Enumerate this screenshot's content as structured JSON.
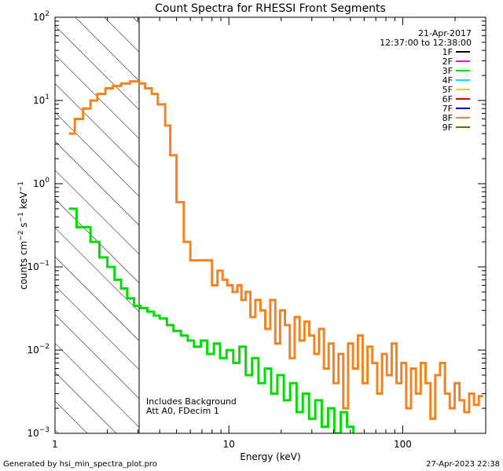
{
  "chart_data": {
    "type": "line",
    "title": "Count Spectra for RHESSI Front Segments",
    "xlabel": "Energy (keV)",
    "ylabel": {
      "base": "counts cm",
      "exp1": "−2",
      "mid1": " s",
      "exp2": "−1",
      "mid2": " keV",
      "exp3": "−1"
    },
    "xscale": "log",
    "yscale": "log",
    "xlim": [
      1,
      300
    ],
    "ylim": [
      0.001,
      100
    ],
    "x_ticks": [
      {
        "value": 1,
        "label": "1"
      },
      {
        "value": 10,
        "label": "10"
      },
      {
        "value": 100,
        "label": "100"
      }
    ],
    "y_ticks": [
      {
        "value": 100,
        "base": "10",
        "exp": "2"
      },
      {
        "value": 10,
        "base": "10",
        "exp": "1"
      },
      {
        "value": 1,
        "base": "10",
        "exp": "0"
      },
      {
        "value": 0.1,
        "base": "10",
        "exp": "−1"
      },
      {
        "value": 0.01,
        "base": "10",
        "exp": "−2"
      },
      {
        "value": 0.001,
        "base": "10",
        "exp": "−3"
      }
    ],
    "hatch_region": {
      "x_from": 1,
      "x_to": 3
    },
    "annotations": {
      "date": "21-Apr-2017",
      "time_range": "12:37:00 to 12:38:00",
      "notes": [
        "Includes Background",
        "Att A0, FDecim 1"
      ]
    },
    "legend": {
      "placement": "top-right",
      "entries": [
        {
          "name": "1F",
          "color": "#000000"
        },
        {
          "name": "2F",
          "color": "#ff00ff"
        },
        {
          "name": "3F",
          "color": "#00dd00"
        },
        {
          "name": "4F",
          "color": "#00e5ff"
        },
        {
          "name": "5F",
          "color": "#f0d000"
        },
        {
          "name": "6F",
          "color": "#dd0000"
        },
        {
          "name": "7F",
          "color": "#0000cc"
        },
        {
          "name": "8F",
          "color": "#f58220"
        },
        {
          "name": "9F",
          "color": "#6b6b00"
        }
      ]
    },
    "series": [
      {
        "name": "8F",
        "color": "#f58220",
        "points": [
          [
            1.2,
            4
          ],
          [
            1.3,
            4
          ],
          [
            1.3,
            6
          ],
          [
            1.45,
            6
          ],
          [
            1.45,
            8
          ],
          [
            1.6,
            8
          ],
          [
            1.6,
            10
          ],
          [
            1.75,
            10
          ],
          [
            1.75,
            12
          ],
          [
            1.95,
            12
          ],
          [
            1.95,
            14
          ],
          [
            2.15,
            14
          ],
          [
            2.15,
            15
          ],
          [
            2.4,
            15
          ],
          [
            2.4,
            16
          ],
          [
            2.7,
            16
          ],
          [
            2.7,
            17
          ],
          [
            3.05,
            17
          ],
          [
            3.05,
            16
          ],
          [
            3.3,
            16
          ],
          [
            3.3,
            14
          ],
          [
            3.6,
            14
          ],
          [
            3.6,
            12
          ],
          [
            3.9,
            12
          ],
          [
            3.9,
            9
          ],
          [
            4.3,
            9
          ],
          [
            4.3,
            5
          ],
          [
            4.6,
            5
          ],
          [
            4.6,
            2.2
          ],
          [
            5.0,
            2.2
          ],
          [
            5.0,
            0.6
          ],
          [
            5.5,
            0.6
          ],
          [
            5.5,
            0.2
          ],
          [
            6.0,
            0.2
          ],
          [
            6.0,
            0.12
          ],
          [
            7.0,
            0.12
          ],
          [
            7.0,
            0.12
          ],
          [
            8.0,
            0.12
          ],
          [
            8.0,
            0.06
          ],
          [
            8.6,
            0.06
          ],
          [
            8.6,
            0.09
          ],
          [
            9.2,
            0.09
          ],
          [
            9.2,
            0.07
          ],
          [
            9.8,
            0.07
          ],
          [
            9.8,
            0.06
          ],
          [
            10.5,
            0.06
          ],
          [
            10.5,
            0.05
          ],
          [
            11.2,
            0.05
          ],
          [
            11.2,
            0.06
          ],
          [
            11.8,
            0.06
          ],
          [
            11.8,
            0.04
          ],
          [
            12.5,
            0.04
          ],
          [
            12.5,
            0.05
          ],
          [
            13.3,
            0.05
          ],
          [
            13.3,
            0.025
          ],
          [
            14.2,
            0.025
          ],
          [
            14.2,
            0.04
          ],
          [
            15.2,
            0.04
          ],
          [
            15.2,
            0.03
          ],
          [
            16.2,
            0.03
          ],
          [
            16.2,
            0.018
          ],
          [
            17.3,
            0.018
          ],
          [
            17.3,
            0.04
          ],
          [
            18.5,
            0.04
          ],
          [
            18.5,
            0.012
          ],
          [
            19.7,
            0.012
          ],
          [
            19.7,
            0.03
          ],
          [
            21.0,
            0.03
          ],
          [
            21.0,
            0.02
          ],
          [
            22.4,
            0.02
          ],
          [
            22.4,
            0.008
          ],
          [
            23.9,
            0.008
          ],
          [
            23.9,
            0.025
          ],
          [
            25.5,
            0.025
          ],
          [
            25.5,
            0.013
          ],
          [
            27.2,
            0.013
          ],
          [
            27.2,
            0.022
          ],
          [
            29.0,
            0.022
          ],
          [
            29.0,
            0.015
          ],
          [
            31.0,
            0.015
          ],
          [
            31.0,
            0.009
          ],
          [
            33.0,
            0.009
          ],
          [
            33.0,
            0.018
          ],
          [
            35.2,
            0.018
          ],
          [
            35.2,
            0.006
          ],
          [
            37.5,
            0.006
          ],
          [
            37.5,
            0.012
          ],
          [
            40.0,
            0.012
          ],
          [
            40.0,
            0.004
          ],
          [
            42.7,
            0.004
          ],
          [
            42.7,
            0.009
          ],
          [
            45.5,
            0.009
          ],
          [
            45.5,
            0.002
          ],
          [
            48.5,
            0.002
          ],
          [
            48.5,
            0.012
          ],
          [
            51.7,
            0.012
          ],
          [
            51.7,
            0.006
          ],
          [
            55.2,
            0.006
          ],
          [
            55.2,
            0.015
          ],
          [
            58.8,
            0.015
          ],
          [
            58.8,
            0.004
          ],
          [
            62.7,
            0.004
          ],
          [
            62.7,
            0.011
          ],
          [
            66.8,
            0.011
          ],
          [
            66.8,
            0.007
          ],
          [
            71.3,
            0.007
          ],
          [
            71.3,
            0.003
          ],
          [
            76.0,
            0.003
          ],
          [
            76.0,
            0.009
          ],
          [
            81.0,
            0.009
          ],
          [
            81.0,
            0.005
          ],
          [
            86.4,
            0.005
          ],
          [
            86.4,
            0.012
          ],
          [
            92.1,
            0.012
          ],
          [
            92.1,
            0.004
          ],
          [
            98.2,
            0.004
          ],
          [
            98.2,
            0.007
          ],
          [
            104.7,
            0.007
          ],
          [
            104.7,
            0.002
          ],
          [
            111.6,
            0.002
          ],
          [
            111.6,
            0.006
          ],
          [
            119.0,
            0.006
          ],
          [
            119.0,
            0.003
          ],
          [
            126.9,
            0.003
          ],
          [
            126.9,
            0.007
          ],
          [
            135.3,
            0.007
          ],
          [
            135.3,
            0.004
          ],
          [
            144.3,
            0.004
          ],
          [
            144.3,
            0.0015
          ],
          [
            153.8,
            0.0015
          ],
          [
            153.8,
            0.005
          ],
          [
            164.0,
            0.005
          ],
          [
            164.0,
            0.007
          ],
          [
            174.9,
            0.007
          ],
          [
            174.9,
            0.003
          ],
          [
            186.4,
            0.003
          ],
          [
            186.4,
            0.002
          ],
          [
            198.8,
            0.002
          ],
          [
            198.8,
            0.004
          ],
          [
            212.0,
            0.004
          ],
          [
            212.0,
            0.0025
          ],
          [
            226.0,
            0.0025
          ],
          [
            226.0,
            0.0018
          ],
          [
            241.0,
            0.0018
          ],
          [
            241.0,
            0.003
          ],
          [
            257.0,
            0.003
          ],
          [
            257.0,
            0.0022
          ],
          [
            274.0,
            0.0022
          ],
          [
            274.0,
            0.0028
          ],
          [
            290.0,
            0.0028
          ]
        ]
      },
      {
        "name": "3F",
        "color": "#00dd00",
        "points": [
          [
            1.2,
            0.5
          ],
          [
            1.33,
            0.5
          ],
          [
            1.33,
            0.3
          ],
          [
            1.6,
            0.3
          ],
          [
            1.6,
            0.2
          ],
          [
            1.8,
            0.2
          ],
          [
            1.8,
            0.13
          ],
          [
            2.0,
            0.13
          ],
          [
            2.0,
            0.1
          ],
          [
            2.2,
            0.1
          ],
          [
            2.2,
            0.07
          ],
          [
            2.4,
            0.07
          ],
          [
            2.4,
            0.055
          ],
          [
            2.6,
            0.055
          ],
          [
            2.6,
            0.042
          ],
          [
            2.85,
            0.042
          ],
          [
            2.85,
            0.034
          ],
          [
            3.1,
            0.034
          ],
          [
            3.1,
            0.032
          ],
          [
            3.4,
            0.032
          ],
          [
            3.4,
            0.029
          ],
          [
            3.7,
            0.029
          ],
          [
            3.7,
            0.026
          ],
          [
            4.0,
            0.026
          ],
          [
            4.0,
            0.024
          ],
          [
            4.4,
            0.024
          ],
          [
            4.4,
            0.02
          ],
          [
            4.8,
            0.02
          ],
          [
            4.8,
            0.017
          ],
          [
            5.3,
            0.017
          ],
          [
            5.3,
            0.015
          ],
          [
            5.8,
            0.015
          ],
          [
            5.8,
            0.013
          ],
          [
            6.3,
            0.013
          ],
          [
            6.3,
            0.011
          ],
          [
            6.9,
            0.011
          ],
          [
            6.9,
            0.013
          ],
          [
            7.5,
            0.013
          ],
          [
            7.5,
            0.009
          ],
          [
            8.2,
            0.009
          ],
          [
            8.2,
            0.012
          ],
          [
            8.9,
            0.012
          ],
          [
            8.9,
            0.008
          ],
          [
            9.7,
            0.008
          ],
          [
            9.7,
            0.01
          ],
          [
            10.6,
            0.01
          ],
          [
            10.6,
            0.007
          ],
          [
            11.5,
            0.007
          ],
          [
            11.5,
            0.011
          ],
          [
            12.5,
            0.011
          ],
          [
            12.5,
            0.005
          ],
          [
            13.6,
            0.005
          ],
          [
            13.6,
            0.008
          ],
          [
            14.8,
            0.008
          ],
          [
            14.8,
            0.004
          ],
          [
            16.1,
            0.004
          ],
          [
            16.1,
            0.006
          ],
          [
            17.5,
            0.006
          ],
          [
            17.5,
            0.003
          ],
          [
            19.0,
            0.003
          ],
          [
            19.0,
            0.005
          ],
          [
            20.7,
            0.005
          ],
          [
            20.7,
            0.0025
          ],
          [
            22.5,
            0.0025
          ],
          [
            22.5,
            0.004
          ],
          [
            24.5,
            0.004
          ],
          [
            24.5,
            0.0018
          ],
          [
            26.6,
            0.0018
          ],
          [
            26.6,
            0.003
          ],
          [
            28.9,
            0.003
          ],
          [
            28.9,
            0.0015
          ],
          [
            31.4,
            0.0015
          ],
          [
            31.4,
            0.0025
          ],
          [
            34.2,
            0.0025
          ],
          [
            34.2,
            0.0012
          ],
          [
            37.2,
            0.0012
          ],
          [
            37.2,
            0.002
          ],
          [
            40.4,
            0.002
          ],
          [
            40.4,
            0.001
          ],
          [
            44.0,
            0.001
          ],
          [
            44.0,
            0.0018
          ],
          [
            47.8,
            0.0018
          ],
          [
            47.8,
            0.0012
          ],
          [
            52.0,
            0.0012
          ],
          [
            52.0,
            0.001
          ]
        ]
      }
    ]
  },
  "footer": {
    "left": "Generated by hsi_min_spectra_plot.pro",
    "right": "27-Apr-2023 22:38"
  }
}
